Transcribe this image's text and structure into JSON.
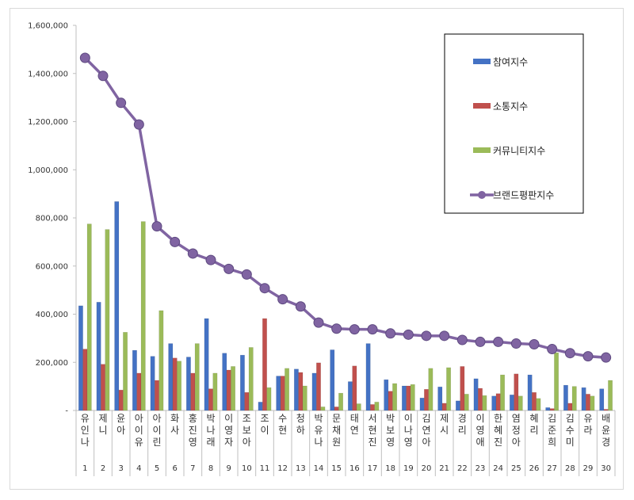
{
  "chart_data": {
    "type": "bar",
    "title": "",
    "xlabel": "",
    "ylabel": "",
    "ylim": [
      0,
      1600000
    ],
    "yticks": [
      "-",
      "200,000",
      "400,000",
      "600,000",
      "800,000",
      "1,000,000",
      "1,200,000",
      "1,400,000",
      "1,600,000"
    ],
    "grid": false,
    "legend_position": "top-right",
    "ranks": [
      "1",
      "2",
      "3",
      "4",
      "5",
      "6",
      "7",
      "8",
      "9",
      "10",
      "11",
      "12",
      "13",
      "14",
      "15",
      "16",
      "17",
      "18",
      "19",
      "20",
      "21",
      "22",
      "23",
      "24",
      "25",
      "26",
      "27",
      "28",
      "29",
      "30"
    ],
    "categories": [
      "유인나",
      "제니",
      "윤아",
      "아이유",
      "아이린",
      "화사",
      "홍진영",
      "박나래",
      "이영자",
      "조보아",
      "조이",
      "수현",
      "청하",
      "박유나",
      "문채원",
      "태연",
      "서현진",
      "박보영",
      "이나영",
      "김연아",
      "제시",
      "경리",
      "이영애",
      "한혜진",
      "염정아",
      "혜리",
      "김준희",
      "김수미",
      "유라",
      "배윤경"
    ],
    "series": [
      {
        "name": "참여지수",
        "kind": "bar",
        "color": "#4472c4",
        "values": [
          435000,
          450000,
          868000,
          250000,
          225000,
          278000,
          222000,
          382000,
          238000,
          230000,
          35000,
          143000,
          172000,
          155000,
          252000,
          120000,
          278000,
          128000,
          102000,
          52000,
          98000,
          40000,
          132000,
          60000,
          65000,
          148000,
          12000,
          105000,
          95000,
          90000
        ]
      },
      {
        "name": "소통지수",
        "kind": "bar",
        "color": "#c0504d",
        "values": [
          255000,
          192000,
          85000,
          155000,
          125000,
          218000,
          155000,
          90000,
          168000,
          75000,
          382000,
          143000,
          158000,
          198000,
          15000,
          185000,
          25000,
          80000,
          102000,
          88000,
          30000,
          183000,
          92000,
          70000,
          152000,
          75000,
          8000,
          30000,
          68000,
          5000
        ]
      },
      {
        "name": "커뮤니티지수",
        "kind": "bar",
        "color": "#9bbb59",
        "values": [
          775000,
          752000,
          325000,
          785000,
          415000,
          205000,
          278000,
          155000,
          183000,
          262000,
          95000,
          175000,
          102000,
          15000,
          72000,
          28000,
          35000,
          112000,
          108000,
          175000,
          178000,
          68000,
          62000,
          148000,
          60000,
          50000,
          240000,
          100000,
          60000,
          125000
        ]
      },
      {
        "name": "브랜드평판지수",
        "kind": "line",
        "color": "#8064a2",
        "values": [
          1465000,
          1390000,
          1278000,
          1188000,
          765000,
          700000,
          652000,
          625000,
          588000,
          565000,
          508000,
          462000,
          432000,
          365000,
          340000,
          337000,
          337000,
          320000,
          315000,
          310000,
          310000,
          293000,
          285000,
          285000,
          278000,
          275000,
          255000,
          238000,
          225000,
          220000
        ]
      }
    ]
  }
}
